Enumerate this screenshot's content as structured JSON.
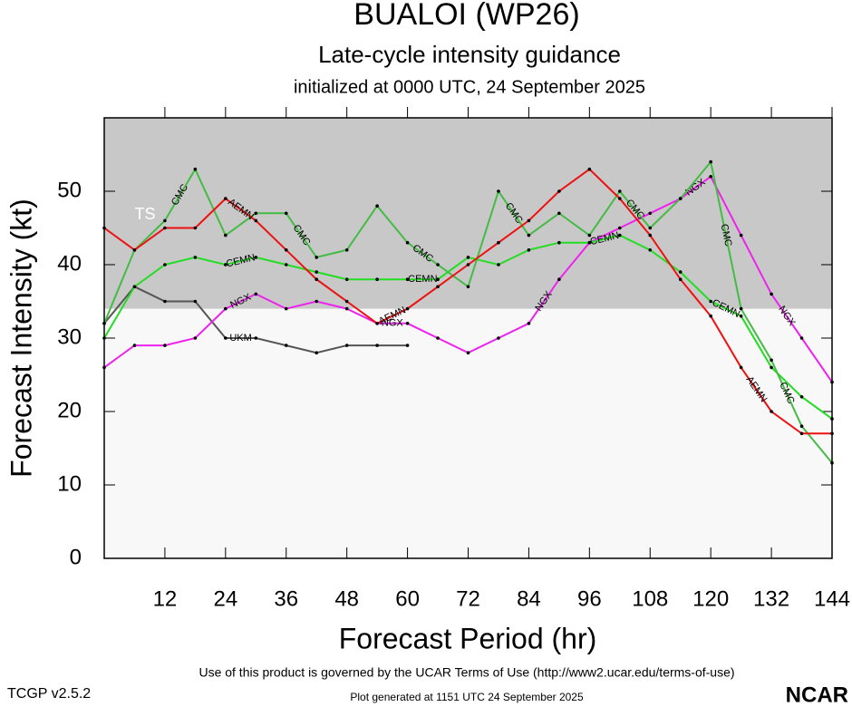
{
  "chart_data": {
    "type": "line",
    "title": "BUALOI (WP26)",
    "subtitle": "Late-cycle intensity guidance",
    "initialized": "initialized at 0000 UTC, 24 September 2025",
    "x_label": "Forecast Period (hr)",
    "y_label": "Forecast Intensity (kt)",
    "x": [
      0,
      6,
      12,
      18,
      24,
      30,
      36,
      42,
      48,
      54,
      60,
      66,
      72,
      78,
      84,
      90,
      96,
      102,
      108,
      114,
      120,
      126,
      132,
      138,
      144
    ],
    "xlim": [
      0,
      144
    ],
    "xticks": [
      12,
      24,
      36,
      48,
      60,
      72,
      84,
      96,
      108,
      120,
      132,
      144
    ],
    "ylim": [
      0,
      60
    ],
    "yticks": [
      0,
      10,
      20,
      30,
      40,
      50
    ],
    "ts_band": {
      "label": "TS",
      "min": 34,
      "color": "#c8c8c8"
    },
    "series": [
      {
        "name": "UKM",
        "color": "#555555",
        "values": [
          32,
          37,
          35,
          35,
          30,
          30,
          29,
          28,
          29,
          29,
          29,
          null,
          null,
          null,
          null,
          null,
          null,
          null,
          null,
          null,
          null,
          null,
          null,
          null,
          null
        ]
      },
      {
        "name": "NGX",
        "color": "#ee22ee",
        "values": [
          26,
          29,
          29,
          30,
          34,
          36,
          34,
          35,
          34,
          32,
          32,
          30,
          28,
          30,
          32,
          38,
          43,
          45,
          47,
          49,
          52,
          44,
          36,
          30,
          24
        ]
      },
      {
        "name": "CEMN",
        "color": "#22dd22",
        "values": [
          30,
          37,
          40,
          41,
          40,
          41,
          40,
          39,
          38,
          38,
          38,
          38,
          41,
          40,
          42,
          43,
          43,
          44,
          42,
          39,
          35,
          33,
          26,
          22,
          19
        ]
      },
      {
        "name": "CMC",
        "color": "#44bb44",
        "values": [
          32,
          42,
          46,
          53,
          44,
          47,
          47,
          41,
          42,
          48,
          43,
          40,
          37,
          50,
          44,
          47,
          44,
          50,
          45,
          49,
          54,
          34,
          27,
          18,
          13
        ]
      },
      {
        "name": "AEMN",
        "color": "#ee1111",
        "values": [
          45,
          42,
          45,
          45,
          49,
          46,
          42,
          38,
          35,
          32,
          34,
          37,
          40,
          43,
          46,
          50,
          53,
          49,
          44,
          38,
          33,
          26,
          20,
          17,
          17
        ]
      }
    ]
  },
  "footer": {
    "terms": "Use of this product is governed by the UCAR Terms of Use (http://www2.ucar.edu/terms-of-use)",
    "version": "TCGP v2.5.2",
    "generated": "Plot generated at 1151 UTC   24 September 2025",
    "logo": "NCAR"
  }
}
